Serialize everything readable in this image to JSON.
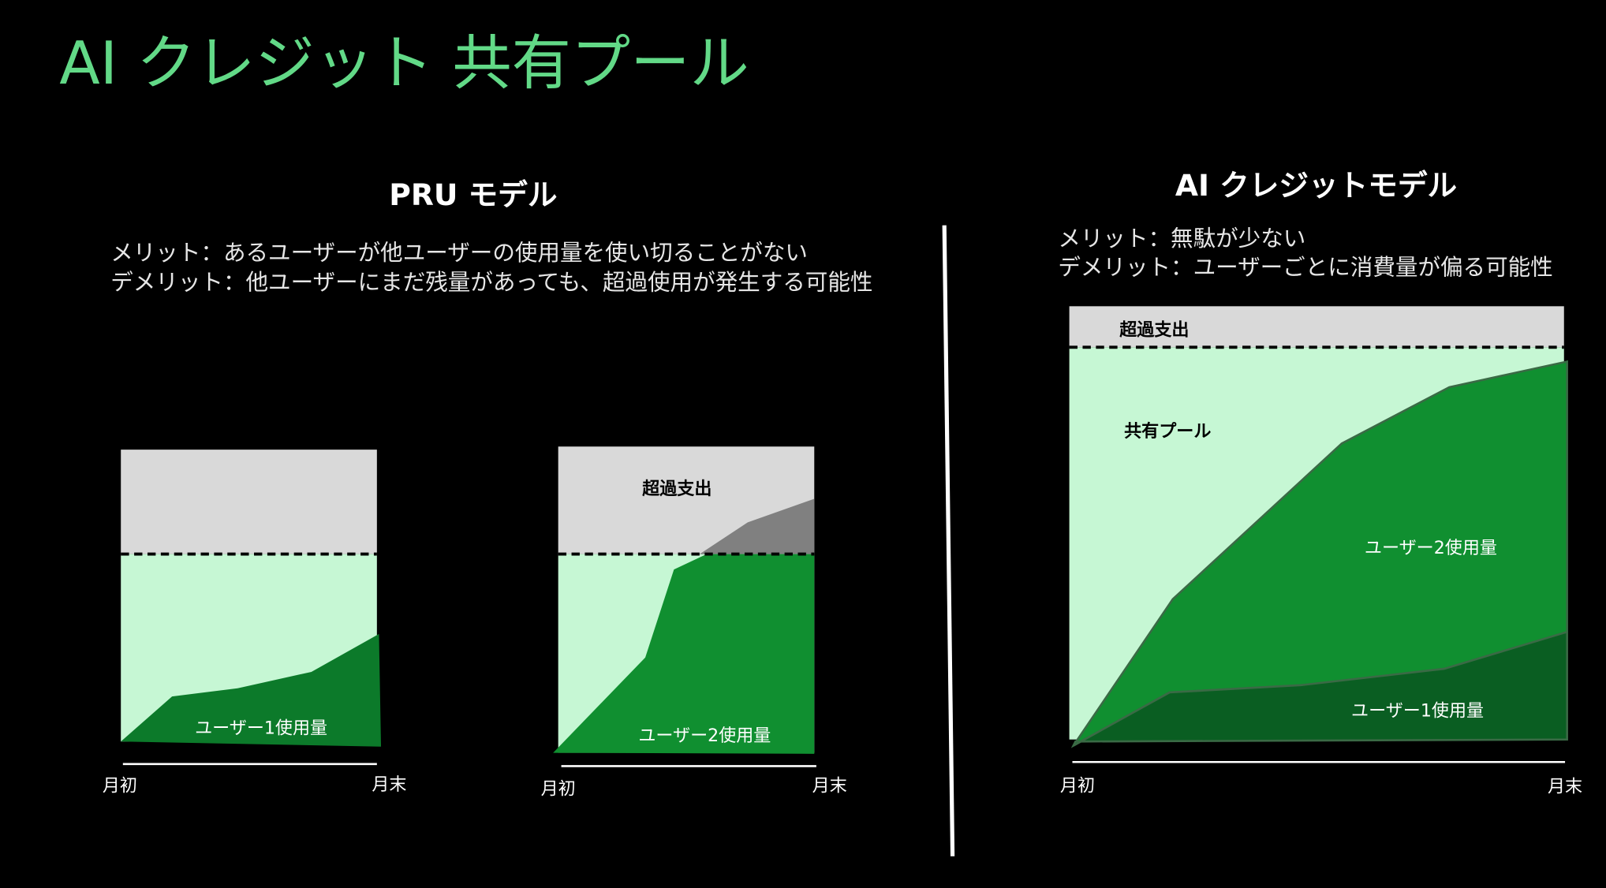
{
  "title": "AI クレジット 共有プール",
  "left": {
    "heading": "PRU モデル",
    "merit": "メリット：あるユーザーが他ユーザーの使用量を使い切ることがない",
    "demerit": "デメリット：他ユーザーにまだ残量があっても、超過使用が発生する可能性",
    "panels": [
      {
        "usage_label": "ユーザー1使用量",
        "start": "月初",
        "end": "月末"
      },
      {
        "overage_label": "超過支出",
        "usage_label": "ユーザー2使用量",
        "start": "月初",
        "end": "月末"
      }
    ]
  },
  "right": {
    "heading": "AI クレジットモデル",
    "merit": "メリット：無駄が少ない",
    "demerit": "デメリット：ユーザーごとに消費量が偏る可能性",
    "overage_label": "超過支出",
    "pool_label": "共有プール",
    "user2_label": "ユーザー2使用量",
    "user1_label": "ユーザー1使用量",
    "start": "月初",
    "end": "月末"
  }
}
